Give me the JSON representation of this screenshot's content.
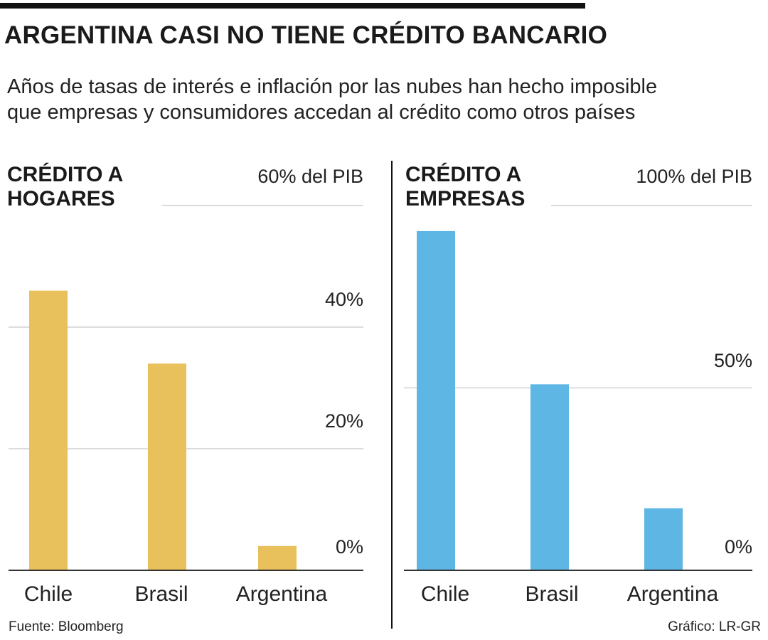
{
  "header": {
    "title": "ARGENTINA CASI NO TIENE CRÉDITO BANCARIO",
    "subtitle_line1": "Años de tasas de interés e inflación por las nubes han hecho imposible",
    "subtitle_line2": "que empresas y consumidores accedan al crédito como otros países"
  },
  "colors": {
    "hogares": "#E8C15C",
    "empresas": "#5EB6E4",
    "grid": "#c8c8c8",
    "axis": "#333333"
  },
  "chart_data": [
    {
      "type": "bar",
      "title_line1": "CRÉDITO A",
      "title_line2": "HOGARES",
      "categories": [
        "Chile",
        "Brasil",
        "Argentina"
      ],
      "values": [
        46,
        34,
        4
      ],
      "unit": "% del PIB",
      "ylim": [
        0,
        60
      ],
      "ticks": [
        {
          "value": 60,
          "label": "60% del PIB"
        },
        {
          "value": 40,
          "label": "40%"
        },
        {
          "value": 20,
          "label": "20%"
        },
        {
          "value": 0,
          "label": "0%"
        }
      ],
      "grid": true
    },
    {
      "type": "bar",
      "title_line1": "CRÉDITO A",
      "title_line2": "EMPRESAS",
      "categories": [
        "Chile",
        "Brasil",
        "Argentina"
      ],
      "values": [
        93,
        51,
        17
      ],
      "unit": "% del PIB",
      "ylim": [
        0,
        100
      ],
      "ticks": [
        {
          "value": 100,
          "label": "100% del PIB"
        },
        {
          "value": 50,
          "label": "50%"
        },
        {
          "value": 0,
          "label": "0%"
        }
      ],
      "grid": true
    }
  ],
  "footer": {
    "source": "Fuente: Bloomberg",
    "credit": "Gráfico: LR-GR"
  }
}
